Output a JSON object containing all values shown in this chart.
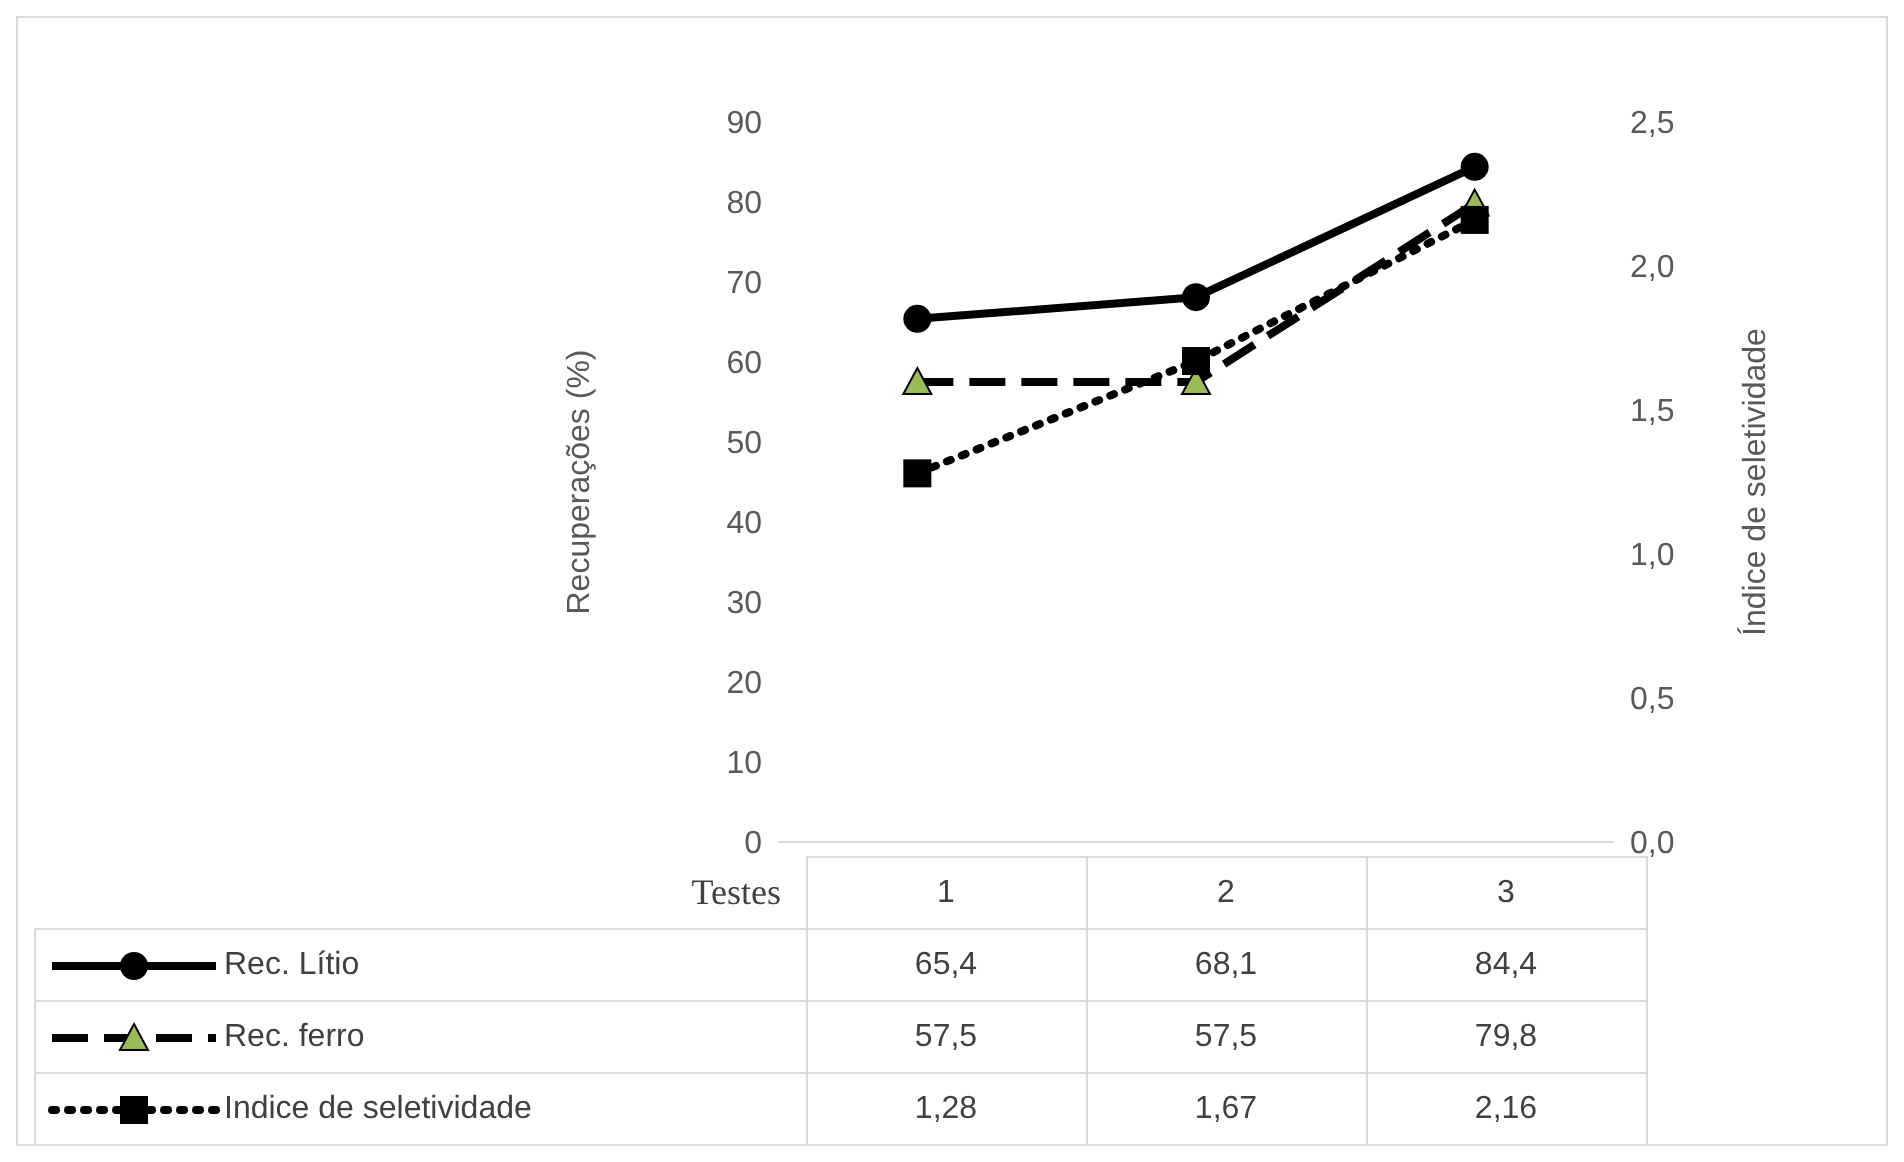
{
  "chart_data": {
    "type": "line",
    "xlabel": "Testes",
    "ylabel": "Recuperações (%)",
    "y2label": "Índice de seletividade",
    "categories": [
      "1",
      "2",
      "3"
    ],
    "series": [
      {
        "name": "Rec.  Lítio",
        "color": "#000000",
        "values": [
          65.4,
          68.1,
          84.4
        ],
        "value_labels": [
          "65,4",
          "68,1",
          "84,4"
        ],
        "marker": "circle",
        "line_style": "solid"
      },
      {
        "name": "Rec. ferro",
        "color": "#000000",
        "values": [
          57.5,
          57.5,
          79.8
        ],
        "value_labels": [
          "57,5",
          "57,5",
          "79,8"
        ],
        "marker": "triangle",
        "line_style": "dashed"
      },
      {
        "name": "Indice de seletividade",
        "color": "#000000",
        "values": [
          1.28,
          1.67,
          2.16
        ],
        "value_labels": [
          "1,28",
          "1,67",
          "2,16"
        ],
        "marker": "square",
        "line_style": "dotted",
        "axis": "y2"
      }
    ],
    "ylim": [
      0,
      90
    ],
    "yticks": [
      0,
      10,
      20,
      30,
      40,
      50,
      60,
      70,
      80,
      90
    ],
    "y2lim": [
      0,
      2.5
    ],
    "y2ticks": [
      {
        "value": 0,
        "label": "0,0"
      },
      {
        "value": 0.5,
        "label": "0,5"
      },
      {
        "value": 1,
        "label": "1,0"
      },
      {
        "value": 1.5,
        "label": "1,5"
      },
      {
        "value": 2,
        "label": "2,0"
      },
      {
        "value": 2.5,
        "label": "2,5"
      }
    ],
    "grid": false,
    "legend": "bottom"
  }
}
